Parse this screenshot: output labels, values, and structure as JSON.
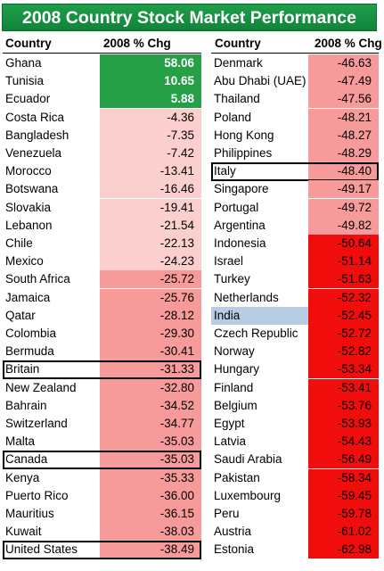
{
  "title": "2008 Country Stock Market Performance",
  "headers": {
    "left_country": "Country",
    "left_chg": "2008 % Chg",
    "right_country": "Country",
    "right_chg": "2008 % Chg"
  },
  "colors": {
    "title_bg": "#17934a",
    "positive": "#25a046",
    "light": "#fccfcf",
    "medium": "#f79a9a",
    "dark": "#f20d0d",
    "highlight": "#b8cce4"
  },
  "chart_data": {
    "type": "table",
    "title": "2008 Country Stock Market Performance",
    "columns": [
      "Country",
      "2008 % Chg"
    ],
    "left": [
      {
        "country": "Ghana",
        "value": "58.06",
        "shade": "positive"
      },
      {
        "country": "Tunisia",
        "value": "10.65",
        "shade": "positive"
      },
      {
        "country": "Ecuador",
        "value": "5.88",
        "shade": "positive"
      },
      {
        "country": "Costa Rica",
        "value": "-4.36",
        "shade": "light"
      },
      {
        "country": "Bangladesh",
        "value": "-7.35",
        "shade": "light"
      },
      {
        "country": "Venezuela",
        "value": "-7.42",
        "shade": "light"
      },
      {
        "country": "Morocco",
        "value": "-13.41",
        "shade": "light"
      },
      {
        "country": "Botswana",
        "value": "-16.46",
        "shade": "light"
      },
      {
        "country": "Slovakia",
        "value": "-19.41",
        "shade": "light"
      },
      {
        "country": "Lebanon",
        "value": "-21.54",
        "shade": "light"
      },
      {
        "country": "Chile",
        "value": "-22.13",
        "shade": "light"
      },
      {
        "country": "Mexico",
        "value": "-24.23",
        "shade": "light"
      },
      {
        "country": "South Africa",
        "value": "-25.72",
        "shade": "medium"
      },
      {
        "country": "Jamaica",
        "value": "-25.76",
        "shade": "medium"
      },
      {
        "country": "Qatar",
        "value": "-28.12",
        "shade": "medium"
      },
      {
        "country": "Colombia",
        "value": "-29.30",
        "shade": "medium"
      },
      {
        "country": "Bermuda",
        "value": "-30.41",
        "shade": "medium"
      },
      {
        "country": "Britain",
        "value": "-31.33",
        "shade": "medium",
        "boxed": true
      },
      {
        "country": "New Zealand",
        "value": "-32.80",
        "shade": "medium"
      },
      {
        "country": "Bahrain",
        "value": "-34.52",
        "shade": "medium"
      },
      {
        "country": "Switzerland",
        "value": "-34.77",
        "shade": "medium"
      },
      {
        "country": "Malta",
        "value": "-35.03",
        "shade": "medium"
      },
      {
        "country": "Canada",
        "value": "-35.03",
        "shade": "medium",
        "boxed": true
      },
      {
        "country": "Kenya",
        "value": "-35.33",
        "shade": "medium"
      },
      {
        "country": "Puerto Rico",
        "value": "-36.00",
        "shade": "medium"
      },
      {
        "country": "Mauritius",
        "value": "-36.15",
        "shade": "medium"
      },
      {
        "country": "Kuwait",
        "value": "-38.03",
        "shade": "medium"
      },
      {
        "country": "United States",
        "value": "-38.49",
        "shade": "medium",
        "boxed": true
      }
    ],
    "right": [
      {
        "country": "Denmark",
        "value": "-46.63",
        "shade": "medium"
      },
      {
        "country": "Abu Dhabi (UAE)",
        "value": "-47.49",
        "shade": "medium"
      },
      {
        "country": "Thailand",
        "value": "-47.56",
        "shade": "medium"
      },
      {
        "country": "Poland",
        "value": "-48.21",
        "shade": "medium"
      },
      {
        "country": "Hong Kong",
        "value": "-48.27",
        "shade": "medium"
      },
      {
        "country": "Philippines",
        "value": "-48.29",
        "shade": "medium"
      },
      {
        "country": "Italy",
        "value": "-48.40",
        "shade": "medium",
        "boxed": true
      },
      {
        "country": "Singapore",
        "value": "-49.17",
        "shade": "medium"
      },
      {
        "country": "Portugal",
        "value": "-49.72",
        "shade": "medium"
      },
      {
        "country": "Argentina",
        "value": "-49.82",
        "shade": "medium"
      },
      {
        "country": "Indonesia",
        "value": "-50.64",
        "shade": "dark"
      },
      {
        "country": "Israel",
        "value": "-51.14",
        "shade": "dark"
      },
      {
        "country": "Turkey",
        "value": "-51.63",
        "shade": "dark"
      },
      {
        "country": "Netherlands",
        "value": "-52.32",
        "shade": "dark"
      },
      {
        "country": "India",
        "value": "-52.45",
        "shade": "dark",
        "highlight": true
      },
      {
        "country": "Czech Republic",
        "value": "-52.72",
        "shade": "dark"
      },
      {
        "country": "Norway",
        "value": "-52.82",
        "shade": "dark"
      },
      {
        "country": "Hungary",
        "value": "-53.34",
        "shade": "dark"
      },
      {
        "country": "Finland",
        "value": "-53.41",
        "shade": "dark"
      },
      {
        "country": "Belgium",
        "value": "-53.76",
        "shade": "dark"
      },
      {
        "country": "Egypt",
        "value": "-53.93",
        "shade": "dark"
      },
      {
        "country": "Latvia",
        "value": "-54.43",
        "shade": "dark"
      },
      {
        "country": "Saudi Arabia",
        "value": "-56.49",
        "shade": "dark"
      },
      {
        "country": "Pakistan",
        "value": "-58.34",
        "shade": "dark"
      },
      {
        "country": "Luxembourg",
        "value": "-59.45",
        "shade": "dark"
      },
      {
        "country": "Peru",
        "value": "-59.78",
        "shade": "dark"
      },
      {
        "country": "Austria",
        "value": "-61.02",
        "shade": "dark"
      },
      {
        "country": "Estonia",
        "value": "-62.98",
        "shade": "dark"
      }
    ]
  }
}
